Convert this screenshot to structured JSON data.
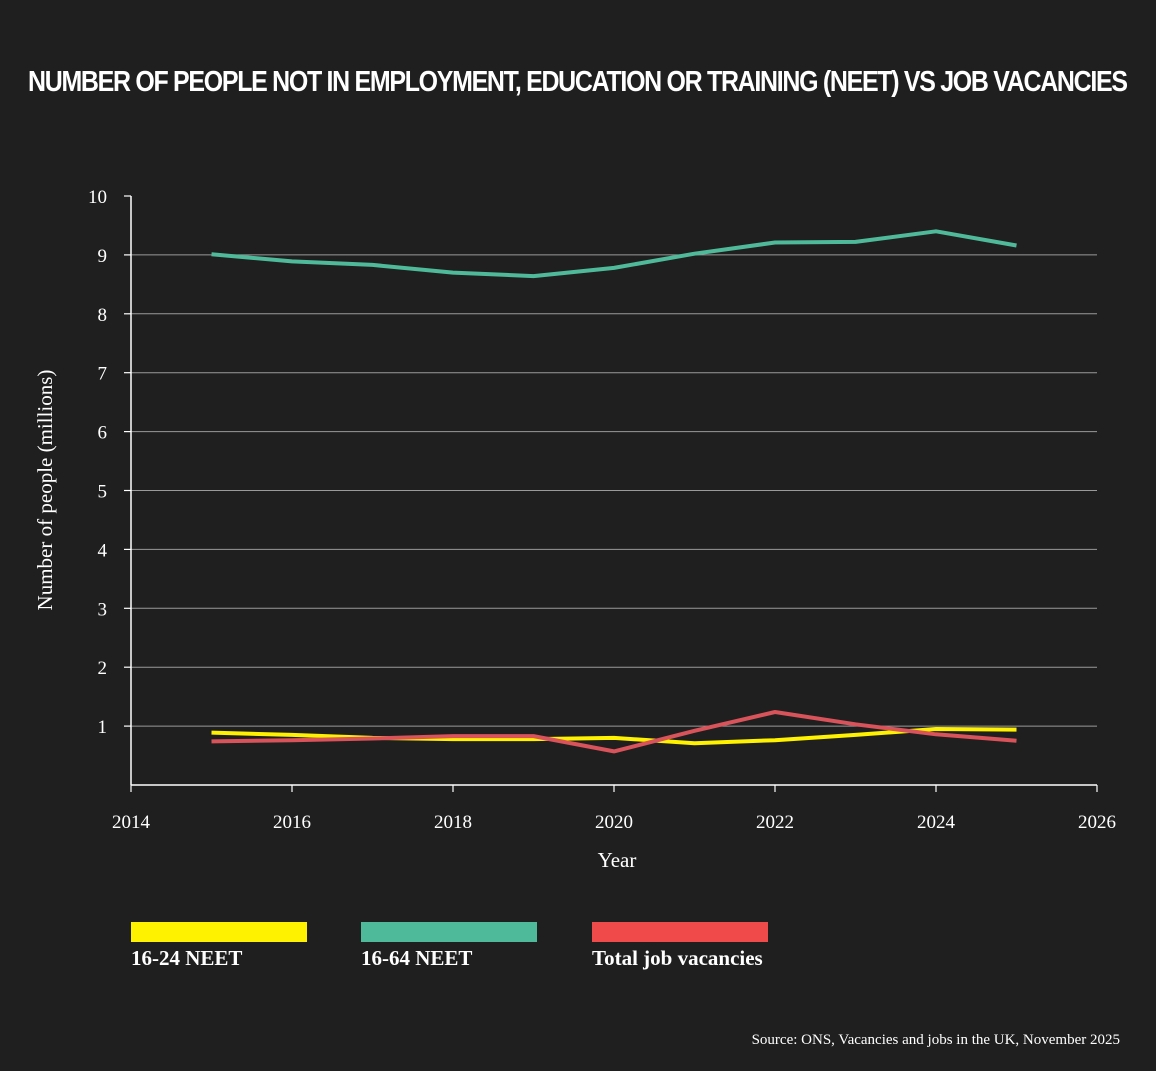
{
  "chart_data": {
    "type": "line",
    "title": "NUMBER OF PEOPLE NOT IN EMPLOYMENT, EDUCATION OR TRAINING (NEET) VS JOB VACANCIES",
    "xlabel": "Year",
    "ylabel": "Number of people (millions)",
    "xlim": [
      2014,
      2026
    ],
    "ylim": [
      0,
      10
    ],
    "x_ticks": [
      "2014",
      "2016",
      "2018",
      "2020",
      "2022",
      "2024",
      "2026"
    ],
    "y_ticks": [
      "1",
      "2",
      "3",
      "4",
      "5",
      "6",
      "7",
      "8",
      "9",
      "10"
    ],
    "grid": true,
    "legend_position": "bottom-left",
    "x": [
      2015,
      2016,
      2017,
      2018,
      2019,
      2020,
      2021,
      2022,
      2023,
      2024,
      2025
    ],
    "series": [
      {
        "name": "16-24 NEET",
        "color": "#fff200",
        "values": [
          0.89,
          0.85,
          0.8,
          0.78,
          0.78,
          0.8,
          0.71,
          0.76,
          0.85,
          0.95,
          0.94
        ]
      },
      {
        "name": "16-64 NEET",
        "color": "#4fba99",
        "values": [
          9.01,
          8.89,
          8.83,
          8.7,
          8.64,
          8.78,
          9.02,
          9.21,
          9.22,
          9.4,
          9.16
        ]
      },
      {
        "name": "Total job vacancies",
        "color": "#d9535a",
        "values": [
          0.74,
          0.76,
          0.79,
          0.83,
          0.83,
          0.57,
          0.92,
          1.24,
          1.03,
          0.86,
          0.75
        ]
      }
    ],
    "source": "Source: ONS, Vacancies and jobs in the UK, November 2025"
  },
  "legend": [
    {
      "label": "16-24 NEET",
      "swatch_color": "#fff200"
    },
    {
      "label": "16-64 NEET",
      "swatch_color": "#4fba99"
    },
    {
      "label": "Total job vacancies",
      "swatch_color": "#f04a4a"
    }
  ]
}
